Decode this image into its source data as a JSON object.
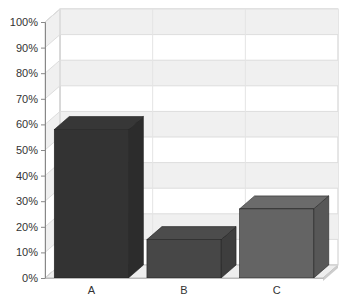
{
  "chart_data": {
    "type": "bar",
    "categories": [
      "A",
      "B",
      "C"
    ],
    "values": [
      58,
      15,
      27
    ],
    "colors": [
      "#333333",
      "#474747",
      "#646464"
    ],
    "ylim": [
      0,
      100
    ],
    "yticks": [
      {
        "value": 0,
        "label": "0%"
      },
      {
        "value": 10,
        "label": "10%"
      },
      {
        "value": 20,
        "label": "20%"
      },
      {
        "value": 30,
        "label": "30%"
      },
      {
        "value": 40,
        "label": "40%"
      },
      {
        "value": 50,
        "label": "50%"
      },
      {
        "value": 60,
        "label": "60%"
      },
      {
        "value": 70,
        "label": "70%"
      },
      {
        "value": 80,
        "label": "80%"
      },
      {
        "value": 90,
        "label": "90%"
      },
      {
        "value": 100,
        "label": "100%"
      }
    ],
    "grid": true
  }
}
